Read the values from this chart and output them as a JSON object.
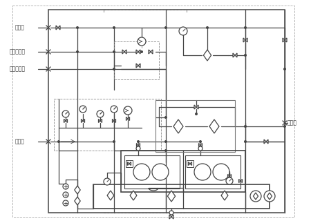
{
  "line_color": "#444444",
  "dashed_color": "#888888",
  "labels": {
    "oil_return": "回油口",
    "cooling_water_in": "冷卻水入口",
    "cooling_water_out": "冷卻水出口",
    "drain": "排油口",
    "oil_in": "进油口"
  }
}
